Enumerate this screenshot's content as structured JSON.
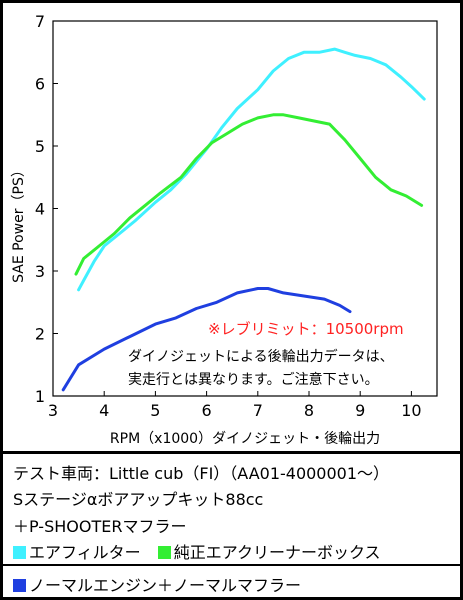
{
  "chart_data": {
    "type": "line",
    "xlabel": "RPM（x1000）ダイノジェット・後輪出力",
    "ylabel": "SAE Power（PS）",
    "xlim": [
      3,
      10.5
    ],
    "ylim": [
      1,
      7
    ],
    "x_ticks": [
      3,
      4,
      5,
      6,
      7,
      8,
      9,
      10
    ],
    "y_ticks": [
      1,
      2,
      3,
      4,
      5,
      6,
      7
    ],
    "grid": false,
    "series": [
      {
        "name": "エアフィルター",
        "color": "#3ff0ff",
        "x": [
          3.5,
          3.6,
          3.8,
          4.0,
          4.3,
          4.6,
          5.0,
          5.3,
          5.6,
          6.0,
          6.3,
          6.6,
          7.0,
          7.3,
          7.6,
          7.9,
          8.2,
          8.5,
          8.7,
          8.9,
          9.2,
          9.5,
          9.8,
          10.0,
          10.25
        ],
        "values": [
          2.7,
          2.85,
          3.15,
          3.4,
          3.6,
          3.8,
          4.1,
          4.3,
          4.55,
          4.95,
          5.3,
          5.6,
          5.9,
          6.2,
          6.4,
          6.5,
          6.5,
          6.55,
          6.5,
          6.45,
          6.4,
          6.3,
          6.1,
          5.95,
          5.75
        ]
      },
      {
        "name": "純正エアクリーナーボックス",
        "color": "#33ee33",
        "x": [
          3.45,
          3.6,
          3.9,
          4.2,
          4.5,
          4.8,
          5.1,
          5.5,
          5.8,
          6.1,
          6.4,
          6.7,
          7.0,
          7.3,
          7.5,
          7.8,
          8.1,
          8.4,
          8.7,
          9.0,
          9.3,
          9.6,
          9.9,
          10.2
        ],
        "values": [
          2.95,
          3.2,
          3.4,
          3.6,
          3.85,
          4.05,
          4.25,
          4.5,
          4.8,
          5.05,
          5.2,
          5.35,
          5.45,
          5.5,
          5.5,
          5.45,
          5.4,
          5.35,
          5.1,
          4.8,
          4.5,
          4.3,
          4.2,
          4.05
        ]
      },
      {
        "name": "ノーマルエンジン＋ノーマルマフラー",
        "color": "#1f3fe0",
        "x": [
          3.2,
          3.5,
          4.0,
          4.5,
          5.0,
          5.4,
          5.8,
          6.2,
          6.6,
          7.0,
          7.2,
          7.5,
          7.9,
          8.3,
          8.6,
          8.8
        ],
        "values": [
          1.1,
          1.5,
          1.75,
          1.95,
          2.15,
          2.25,
          2.4,
          2.5,
          2.65,
          2.72,
          2.72,
          2.65,
          2.6,
          2.55,
          2.45,
          2.35
        ]
      }
    ],
    "annotations": {
      "rev_limit": "※レブリミット：10500rpm",
      "note_line1": "ダイノジェットによる後輪出力データは、",
      "note_line2": "実走行とは異なります。ご注意下さい。"
    }
  },
  "caption": {
    "line1": "テスト車両：Little cub（FI）（AA01-4000001～）",
    "line2": "Sステージαボアアップキット88cc",
    "line3": "＋P-SHOOTERマフラー",
    "legend_air_filter": "エアフィルター",
    "legend_stock_box": "純正エアクリーナーボックス",
    "legend_normal": "ノーマルエンジン＋ノーマルマフラー"
  },
  "colors": {
    "air_filter": "#3ff0ff",
    "stock_box": "#33ee33",
    "normal": "#1f3fe0",
    "rev_limit_text": "#ff2222"
  }
}
